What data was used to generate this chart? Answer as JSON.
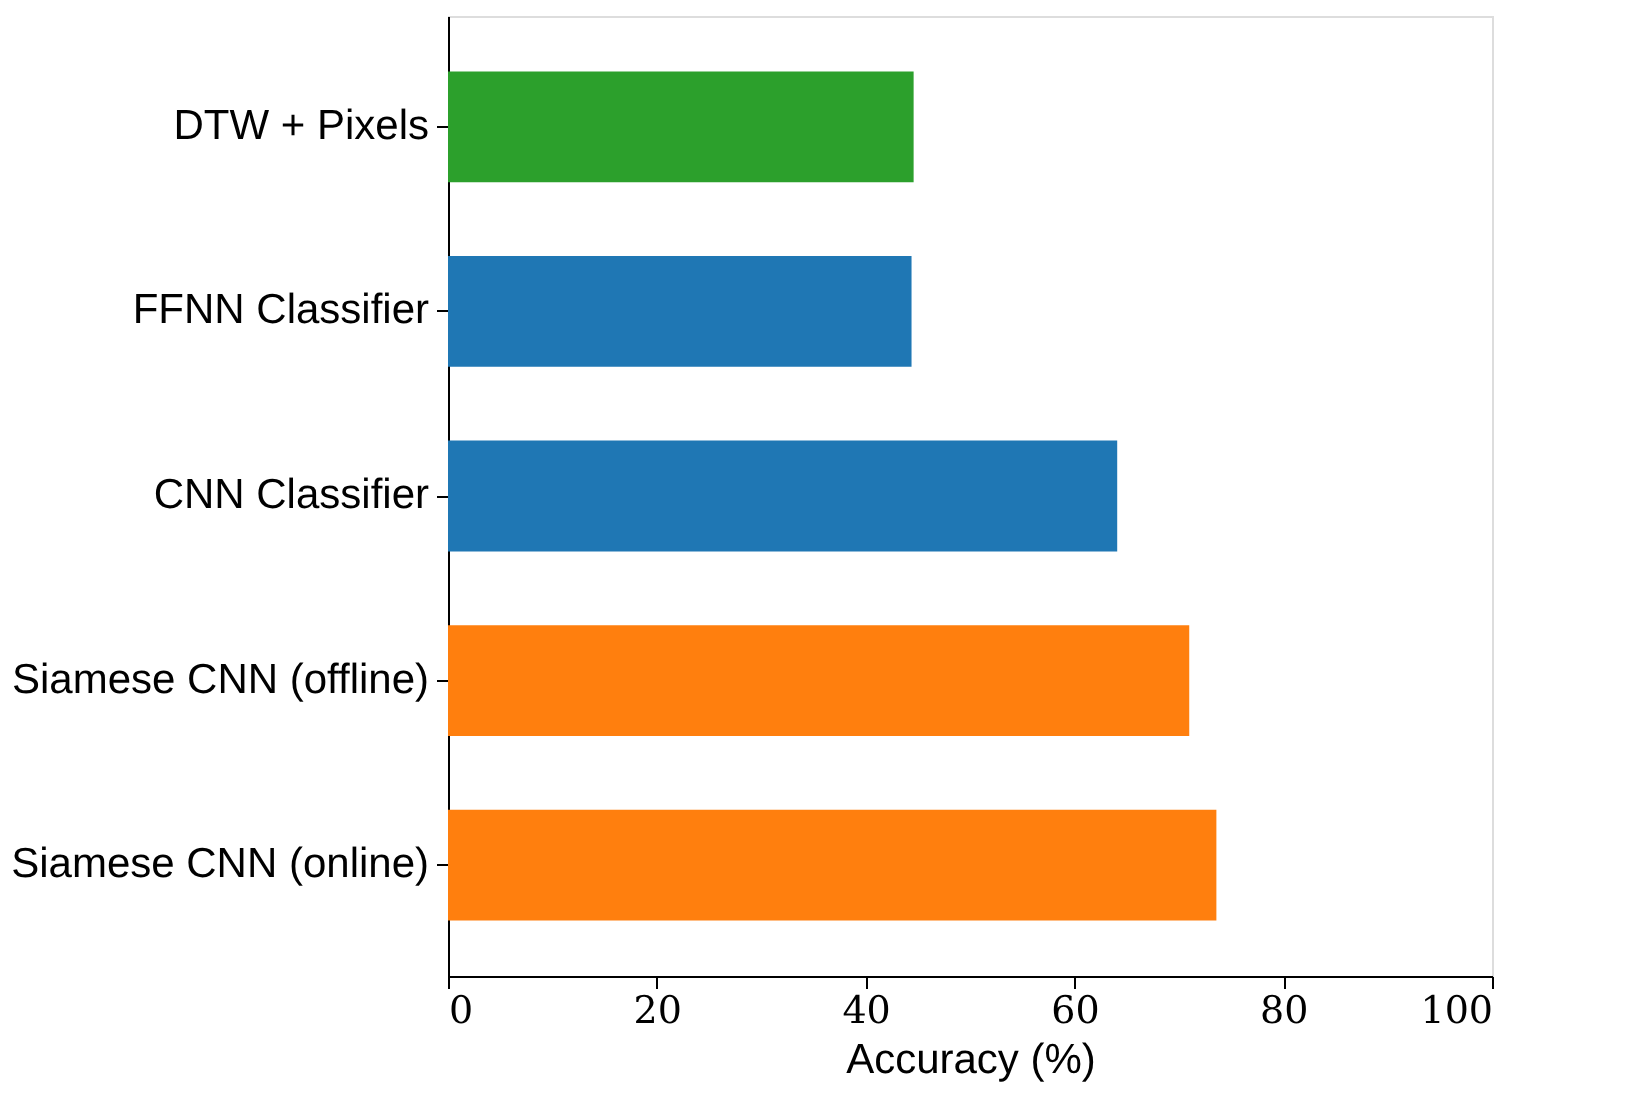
{
  "chart_data": {
    "type": "bar",
    "orientation": "horizontal",
    "xlabel": "Accuracy (%)",
    "categories": [
      "DTW + Pixels",
      "FFNN Classifier",
      "CNN Classifier",
      "Siamese CNN (offline)",
      "Siamese CNN (online)"
    ],
    "values": [
      44.6,
      44.4,
      64.1,
      71.0,
      73.6
    ],
    "colors": [
      "#2ca02c",
      "#1f77b4",
      "#1f77b4",
      "#ff7f0e",
      "#ff7f0e"
    ],
    "xlim": [
      0,
      100
    ],
    "xticks": [
      0,
      20,
      40,
      60,
      80,
      100
    ],
    "grid": false
  }
}
